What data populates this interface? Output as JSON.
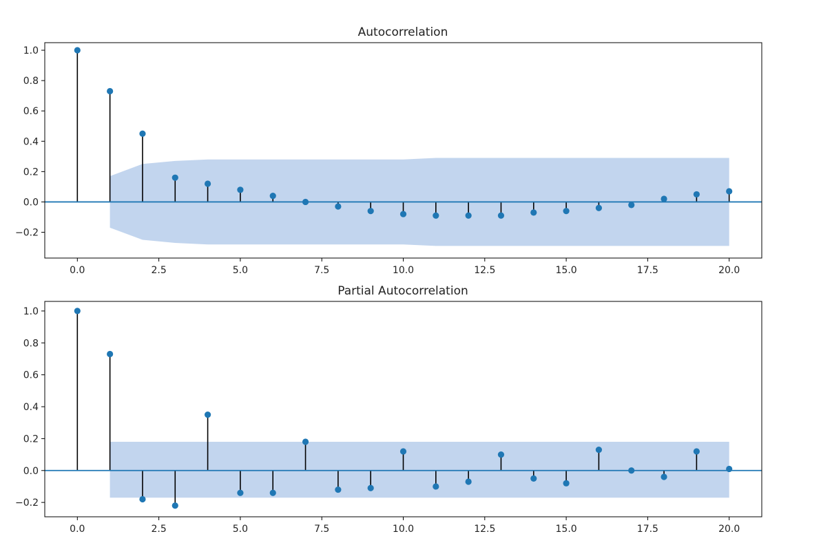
{
  "colors": {
    "marker": "#1f77b4",
    "stem": "#000000",
    "baseline": "#1f77b4",
    "confidence_band": "#aec7e8",
    "axes": "#000000",
    "background": "#ffffff"
  },
  "chart_data": [
    {
      "type": "stem",
      "title": "Autocorrelation",
      "xlabel": "",
      "ylabel": "",
      "xlim": [
        -1,
        21
      ],
      "ylim": [
        -0.37,
        1.05
      ],
      "xticks": [
        0,
        2.5,
        5,
        7.5,
        10,
        12.5,
        15,
        17.5,
        20
      ],
      "xtick_labels": [
        "0.0",
        "2.5",
        "5.0",
        "7.5",
        "10.0",
        "12.5",
        "15.0",
        "17.5",
        "20.0"
      ],
      "yticks": [
        -0.2,
        0,
        0.2,
        0.4,
        0.6,
        0.8,
        1.0
      ],
      "ytick_labels": [
        "−0.2",
        "0.0",
        "0.2",
        "0.4",
        "0.6",
        "0.8",
        "1.0"
      ],
      "grid": false,
      "x": [
        0,
        1,
        2,
        3,
        4,
        5,
        6,
        7,
        8,
        9,
        10,
        11,
        12,
        13,
        14,
        15,
        16,
        17,
        18,
        19,
        20
      ],
      "values": [
        1.0,
        0.73,
        0.45,
        0.16,
        0.12,
        0.08,
        0.04,
        0.0,
        -0.03,
        -0.06,
        -0.08,
        -0.09,
        -0.09,
        -0.09,
        -0.07,
        -0.06,
        -0.04,
        -0.02,
        0.02,
        0.05,
        0.07
      ],
      "confidence_band": {
        "x": [
          1,
          2,
          3,
          4,
          5,
          6,
          7,
          8,
          9,
          10,
          11,
          12,
          13,
          14,
          15,
          16,
          17,
          18,
          19,
          20
        ],
        "upper": [
          0.17,
          0.25,
          0.27,
          0.28,
          0.28,
          0.28,
          0.28,
          0.28,
          0.28,
          0.28,
          0.29,
          0.29,
          0.29,
          0.29,
          0.29,
          0.29,
          0.29,
          0.29,
          0.29,
          0.29
        ],
        "lower": [
          -0.17,
          -0.25,
          -0.27,
          -0.28,
          -0.28,
          -0.28,
          -0.28,
          -0.28,
          -0.28,
          -0.28,
          -0.29,
          -0.29,
          -0.29,
          -0.29,
          -0.29,
          -0.29,
          -0.29,
          -0.29,
          -0.29,
          -0.29
        ]
      }
    },
    {
      "type": "stem",
      "title": "Partial Autocorrelation",
      "xlabel": "",
      "ylabel": "",
      "xlim": [
        -1,
        21
      ],
      "ylim": [
        -0.29,
        1.06
      ],
      "xticks": [
        0,
        2.5,
        5,
        7.5,
        10,
        12.5,
        15,
        17.5,
        20
      ],
      "xtick_labels": [
        "0.0",
        "2.5",
        "5.0",
        "7.5",
        "10.0",
        "12.5",
        "15.0",
        "17.5",
        "20.0"
      ],
      "yticks": [
        -0.2,
        0,
        0.2,
        0.4,
        0.6,
        0.8,
        1.0
      ],
      "ytick_labels": [
        "−0.2",
        "0.0",
        "0.2",
        "0.4",
        "0.6",
        "0.8",
        "1.0"
      ],
      "grid": false,
      "x": [
        0,
        1,
        2,
        3,
        4,
        5,
        6,
        7,
        8,
        9,
        10,
        11,
        12,
        13,
        14,
        15,
        16,
        17,
        18,
        19,
        20
      ],
      "values": [
        1.0,
        0.73,
        -0.18,
        -0.22,
        0.35,
        -0.14,
        -0.14,
        0.18,
        -0.12,
        -0.11,
        0.12,
        -0.1,
        -0.07,
        0.1,
        -0.05,
        -0.08,
        0.13,
        0.0,
        -0.04,
        0.12,
        0.01
      ],
      "confidence_band": {
        "x": [
          1,
          20
        ],
        "upper": [
          0.18,
          0.18
        ],
        "lower": [
          -0.17,
          -0.17
        ]
      }
    }
  ]
}
